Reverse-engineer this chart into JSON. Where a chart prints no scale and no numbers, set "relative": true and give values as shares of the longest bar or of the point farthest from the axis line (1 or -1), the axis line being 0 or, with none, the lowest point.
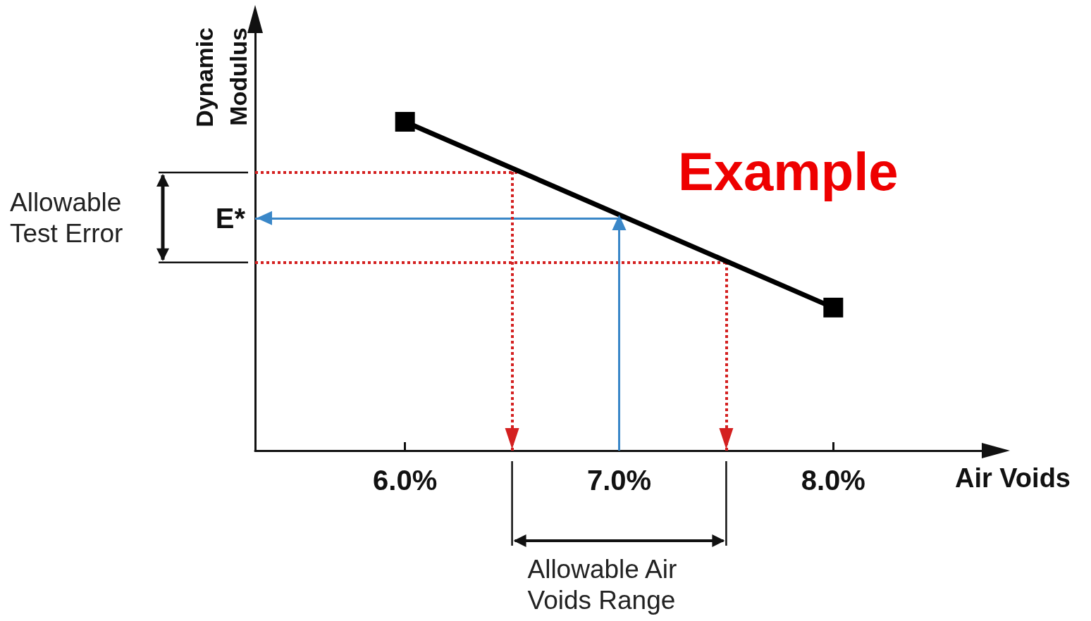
{
  "chart_data": {
    "type": "line",
    "relative": true,
    "xlabel": "Air Voids",
    "ylabel": "Dynamic Modulus",
    "x": [
      6.0,
      8.0
    ],
    "series": [
      {
        "color": "#000000",
        "values": [
          1,
          0.435
        ]
      }
    ],
    "xlim": [
      5.3,
      8.7
    ],
    "xticks": [
      {
        "value": 6,
        "label": "6.0%"
      },
      {
        "value": 7,
        "label": "7.0%"
      },
      {
        "value": 8,
        "label": "8.0%"
      }
    ],
    "marker": "square",
    "line_style": "solid",
    "ref_lines": [
      {
        "axis": "y",
        "value": 0.846,
        "color": "#d42020",
        "line_style": "dotted"
      },
      {
        "axis": "y",
        "value": 0.572,
        "color": "#d42020",
        "line_style": "dotted"
      },
      {
        "axis": "y",
        "value": 0.707,
        "label": "E*",
        "color": "#3a87c8",
        "line_style": "solid"
      },
      {
        "axis": "x",
        "value": 6.5,
        "color": "#d42020",
        "line_style": "dotted"
      },
      {
        "axis": "x",
        "value": 7.5,
        "color": "#d42020",
        "line_style": "dotted"
      },
      {
        "axis": "x",
        "value": 7.0,
        "color": "#3a87c8",
        "line_style": "solid"
      }
    ],
    "annotations": [
      "Example",
      "Allowable Test Error",
      "Allowable Air Voids Range"
    ]
  }
}
